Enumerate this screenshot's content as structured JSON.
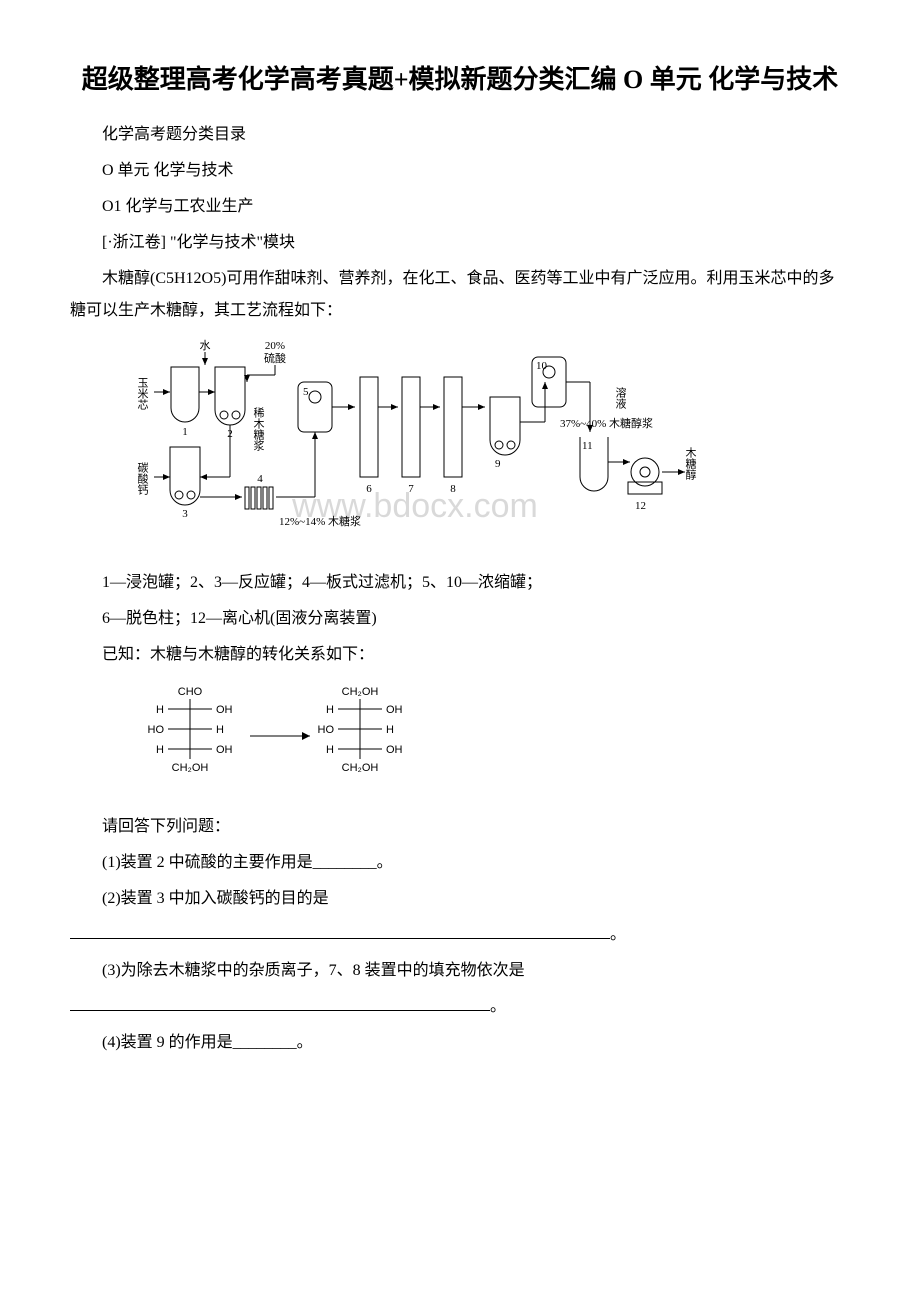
{
  "title": "超级整理高考化学高考真题+模拟新题分类汇编 O 单元 化学与技术",
  "lines": {
    "l1": "化学高考题分类目录",
    "l2": "O 单元 化学与技术",
    "l3": "O1 化学与工农业生产",
    "l4": " [·浙江卷] \"化学与技术\"模块",
    "l5": "木糖醇(C5H12O5)可用作甜味剂、营养剂，在化工、食品、医药等工业中有广泛应用。利用玉米芯中的多糖可以生产木糖醇，其工艺流程如下：",
    "l6": "1—浸泡罐；2、3—反应罐；4—板式过滤机；5、10—浓缩罐；",
    "l7": "6—脱色柱；12—离心机(固液分离装置)",
    "l8": "已知：木糖与木糖醇的转化关系如下：",
    "l9": "请回答下列问题：",
    "l10": "(1)装置 2 中硫酸的主要作用是________。",
    "l11": "(2)装置 3 中加入碳酸钙的目的是",
    "l11end": "。",
    "l12": "(3)为除去木糖浆中的杂质离子，7、8 装置中的填充物依次是",
    "l12end": "。",
    "l13": "(4)装置 9 的作用是________。"
  },
  "flowchart": {
    "watermark": "www.bdocx.com",
    "labels": {
      "water": "水",
      "corn": "玉米芯",
      "caco3": "碳酸钙",
      "h2so4": "20% 硫酸",
      "dilute": "稀木糖浆",
      "conc": "12%~14% 木糖浆",
      "alcohol": "37%~40% 木糖醇浆",
      "solution": "溶液",
      "xylitol": "木糖醇"
    },
    "font_size": 11,
    "colors": {
      "line": "#000000",
      "bg": "#ffffff",
      "watermark": "#d9d9d9"
    }
  },
  "structure": {
    "left": {
      "top": "CHO",
      "rows": [
        {
          "l": "H",
          "r": "OH"
        },
        {
          "l": "HO",
          "r": "H"
        },
        {
          "l": "H",
          "r": "OH"
        }
      ],
      "bottom": "CH₂OH"
    },
    "right": {
      "top": "CH₂OH",
      "rows": [
        {
          "l": "H",
          "r": "OH"
        },
        {
          "l": "HO",
          "r": "H"
        },
        {
          "l": "H",
          "r": "OH"
        }
      ],
      "bottom": "CH₂OH"
    },
    "font_size": 11,
    "line_color": "#000000"
  }
}
